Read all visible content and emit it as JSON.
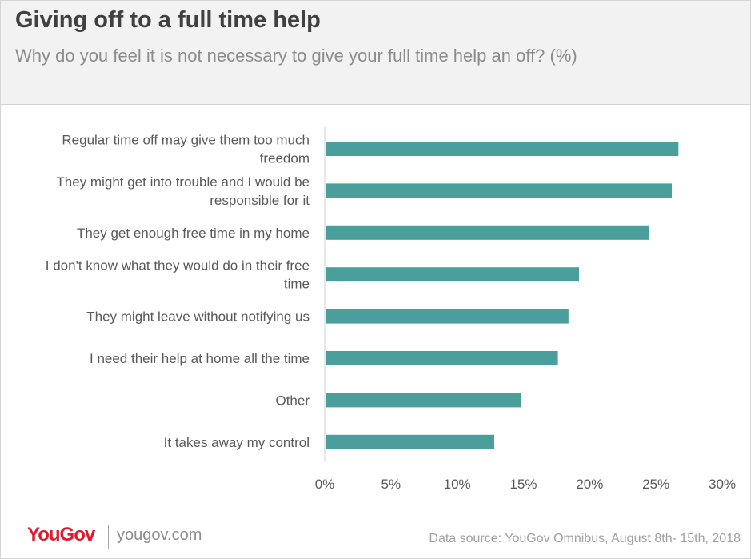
{
  "header": {
    "title": "Giving off to a full time help",
    "subtitle": "Why do you feel it is not necessary to give your full time help an off? (%)"
  },
  "footer": {
    "logo_text": "YouGov",
    "url": "yougov.com",
    "source": "Data source: YouGov Omnibus, August 8th- 15th, 2018"
  },
  "colors": {
    "bar": "#4a9e9c",
    "axis_text": "#595959",
    "brand": "#e2192c"
  },
  "chart_data": {
    "type": "bar",
    "orientation": "horizontal",
    "categories": [
      [
        "Regular time off may give them too much",
        "freedom"
      ],
      [
        "They might get into trouble and I would be",
        "responsible for it"
      ],
      [
        "They get enough free time in my home"
      ],
      [
        "I don't know what they would do in their free",
        "time"
      ],
      [
        "They might leave without notifying us"
      ],
      [
        "I need their help at home all the time"
      ],
      [
        "Other"
      ],
      [
        "It takes away my control"
      ]
    ],
    "values": [
      26.7,
      26.2,
      24.5,
      19.2,
      18.4,
      17.6,
      14.8,
      12.8
    ],
    "xlim": [
      0,
      30
    ],
    "xticks": [
      "0%",
      "5%",
      "10%",
      "15%",
      "20%",
      "25%",
      "30%"
    ],
    "grid": false,
    "legend": "none"
  }
}
